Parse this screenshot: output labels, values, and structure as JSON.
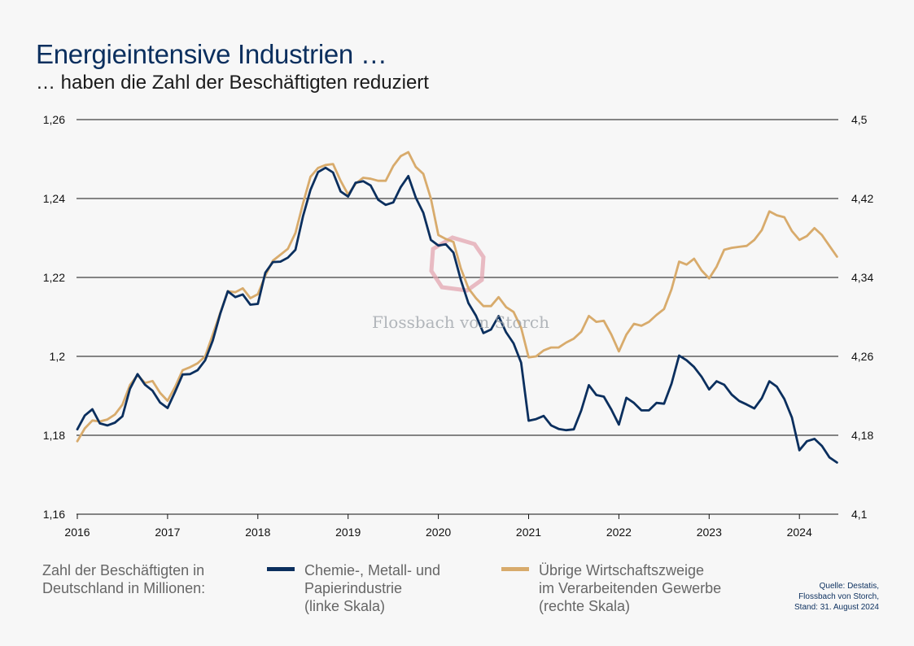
{
  "header": {
    "title": "Energieintensive Industrien …",
    "subtitle": "… haben die Zahl der Beschäftigten reduziert"
  },
  "legend": {
    "label_lines": [
      "Zahl der Beschäftigten in",
      "Deutschland in Millionen:"
    ],
    "items": [
      {
        "color": "#0b2f5e",
        "lines": [
          "Chemie-, Metall- und",
          "Papierindustrie",
          "(linke Skala)"
        ]
      },
      {
        "color": "#d8ab6c",
        "lines": [
          "Übrige Wirtschaftszweige",
          "im Verarbeitenden Gewerbe",
          "(rechte Skala)"
        ]
      }
    ]
  },
  "source": {
    "lines": [
      "Quelle: Destatis,",
      "Flossbach von Storch,",
      "Stand: 31. August 2024"
    ]
  },
  "watermark": "Flossbach von Storch",
  "chart_data": {
    "type": "line",
    "grid": true,
    "x_tick_labels": [
      "2016",
      "2017",
      "2018",
      "2019",
      "2020",
      "2021",
      "2022",
      "2023",
      "2024"
    ],
    "xlim": [
      2016.0,
      2024.45
    ],
    "y_left": {
      "ylim": [
        1.16,
        1.26
      ],
      "tick_values": [
        1.16,
        1.18,
        1.2,
        1.22,
        1.24,
        1.26
      ],
      "tick_labels": [
        "1,16",
        "1,18",
        "1,2",
        "1,22",
        "1,24",
        "1,26"
      ]
    },
    "y_right": {
      "ylim": [
        4.1,
        4.5
      ],
      "tick_values": [
        4.1,
        4.18,
        4.26,
        4.34,
        4.42,
        4.5
      ],
      "tick_labels": [
        "4,1",
        "4,18",
        "4,26",
        "4,34",
        "4,42",
        "4,5"
      ]
    },
    "series": [
      {
        "axis": "left",
        "color": "#0b2f5e",
        "x": [
          2016.0,
          2016.083,
          2016.167,
          2016.25,
          2016.333,
          2016.417,
          2016.5,
          2016.583,
          2016.667,
          2016.75,
          2016.833,
          2016.917,
          2017.0,
          2017.083,
          2017.167,
          2017.25,
          2017.333,
          2017.417,
          2017.5,
          2017.583,
          2017.667,
          2017.75,
          2017.833,
          2017.917,
          2018.0,
          2018.083,
          2018.167,
          2018.25,
          2018.333,
          2018.417,
          2018.5,
          2018.583,
          2018.667,
          2018.75,
          2018.833,
          2018.917,
          2019.0,
          2019.083,
          2019.167,
          2019.25,
          2019.333,
          2019.417,
          2019.5,
          2019.583,
          2019.667,
          2019.75,
          2019.833,
          2019.917,
          2020.0,
          2020.083,
          2020.167,
          2020.25,
          2020.333,
          2020.417,
          2020.5,
          2020.583,
          2020.667,
          2020.75,
          2020.833,
          2020.917,
          2021.0,
          2021.083,
          2021.167,
          2021.25,
          2021.333,
          2021.417,
          2021.5,
          2021.583,
          2021.667,
          2021.75,
          2021.833,
          2021.917,
          2022.0,
          2022.083,
          2022.167,
          2022.25,
          2022.333,
          2022.417,
          2022.5,
          2022.583,
          2022.667,
          2022.75,
          2022.833,
          2022.917,
          2023.0,
          2023.083,
          2023.167,
          2023.25,
          2023.333,
          2023.417,
          2023.5,
          2023.583,
          2023.667,
          2023.75,
          2023.833,
          2023.917,
          2024.0,
          2024.083,
          2024.167,
          2024.25,
          2024.333,
          2024.417
        ],
        "values": [
          1.1815,
          1.185,
          1.1866,
          1.183,
          1.1825,
          1.1832,
          1.1848,
          1.1918,
          1.1955,
          1.1928,
          1.1913,
          1.1883,
          1.1869,
          1.191,
          1.1954,
          1.1955,
          1.1965,
          1.199,
          1.204,
          1.2108,
          1.2165,
          1.215,
          1.2157,
          1.2131,
          1.2133,
          1.2212,
          1.2239,
          1.224,
          1.225,
          1.227,
          1.2355,
          1.2422,
          1.2467,
          1.2478,
          1.2466,
          1.2418,
          1.2405,
          1.244,
          1.2444,
          1.2433,
          1.2397,
          1.2384,
          1.239,
          1.2429,
          1.2457,
          1.2402,
          1.2364,
          1.2295,
          1.2281,
          1.2284,
          1.2263,
          1.2193,
          1.2135,
          1.2103,
          1.2059,
          1.2068,
          1.2102,
          1.2061,
          1.2033,
          1.1984,
          1.1837,
          1.1841,
          1.1849,
          1.1825,
          1.1816,
          1.1813,
          1.1815,
          1.1863,
          1.1927,
          1.1902,
          1.1898,
          1.1865,
          1.1827,
          1.1895,
          1.1882,
          1.1863,
          1.1863,
          1.1882,
          1.188,
          1.1931,
          1.2002,
          1.199,
          1.1973,
          1.1948,
          1.1916,
          1.1937,
          1.1928,
          1.1903,
          1.1887,
          1.1878,
          1.1868,
          1.1894,
          1.1937,
          1.1923,
          1.1892,
          1.1845,
          1.1762,
          1.1785,
          1.1791,
          1.1773,
          1.1744,
          1.1731
        ]
      },
      {
        "axis": "right",
        "color": "#d8ab6c",
        "x": [
          2016.0,
          2016.083,
          2016.167,
          2016.25,
          2016.333,
          2016.417,
          2016.5,
          2016.583,
          2016.667,
          2016.75,
          2016.833,
          2016.917,
          2017.0,
          2017.083,
          2017.167,
          2017.25,
          2017.333,
          2017.417,
          2017.5,
          2017.583,
          2017.667,
          2017.75,
          2017.833,
          2017.917,
          2018.0,
          2018.083,
          2018.167,
          2018.25,
          2018.333,
          2018.417,
          2018.5,
          2018.583,
          2018.667,
          2018.75,
          2018.833,
          2018.917,
          2019.0,
          2019.083,
          2019.167,
          2019.25,
          2019.333,
          2019.417,
          2019.5,
          2019.583,
          2019.667,
          2019.75,
          2019.833,
          2019.917,
          2020.0,
          2020.083,
          2020.167,
          2020.25,
          2020.333,
          2020.417,
          2020.5,
          2020.583,
          2020.667,
          2020.75,
          2020.833,
          2020.917,
          2021.0,
          2021.083,
          2021.167,
          2021.25,
          2021.333,
          2021.417,
          2021.5,
          2021.583,
          2021.667,
          2021.75,
          2021.833,
          2021.917,
          2022.0,
          2022.083,
          2022.167,
          2022.25,
          2022.333,
          2022.417,
          2022.5,
          2022.583,
          2022.667,
          2022.75,
          2022.833,
          2022.917,
          2023.0,
          2023.083,
          2023.167,
          2023.25,
          2023.333,
          2023.417,
          2023.5,
          2023.583,
          2023.667,
          2023.75,
          2023.833,
          2023.917,
          2024.0,
          2024.083,
          2024.167,
          2024.25,
          2024.333,
          2024.417
        ],
        "values": [
          4.174,
          4.187,
          4.195,
          4.194,
          4.196,
          4.201,
          4.211,
          4.231,
          4.241,
          4.233,
          4.235,
          4.223,
          4.215,
          4.229,
          4.246,
          4.249,
          4.253,
          4.26,
          4.282,
          4.304,
          4.326,
          4.325,
          4.329,
          4.319,
          4.323,
          4.342,
          4.357,
          4.363,
          4.369,
          4.385,
          4.415,
          4.442,
          4.451,
          4.454,
          4.455,
          4.438,
          4.424,
          4.435,
          4.441,
          4.44,
          4.438,
          4.438,
          4.453,
          4.463,
          4.467,
          4.452,
          4.445,
          4.42,
          4.383,
          4.379,
          4.376,
          4.349,
          4.329,
          4.319,
          4.311,
          4.311,
          4.32,
          4.31,
          4.305,
          4.289,
          4.259,
          4.26,
          4.266,
          4.269,
          4.269,
          4.274,
          4.278,
          4.285,
          4.301,
          4.295,
          4.296,
          4.282,
          4.265,
          4.282,
          4.293,
          4.291,
          4.295,
          4.302,
          4.308,
          4.328,
          4.356,
          4.353,
          4.359,
          4.347,
          4.339,
          4.351,
          4.368,
          4.37,
          4.371,
          4.372,
          4.378,
          4.388,
          4.407,
          4.403,
          4.401,
          4.387,
          4.378,
          4.382,
          4.39,
          4.383,
          4.372,
          4.361
        ]
      }
    ]
  }
}
